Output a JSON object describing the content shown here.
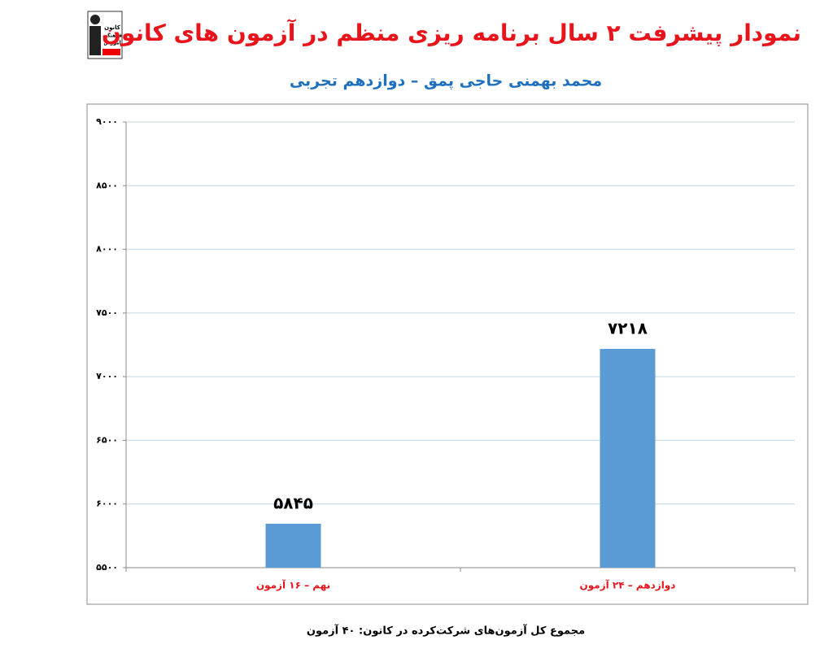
{
  "logo": {
    "lines": [
      "کانون",
      "فرهنگی",
      "آموزش"
    ]
  },
  "chart_data": {
    "type": "bar",
    "title": "نمودار پیشرفت ۲ سال برنامه ریزی منظم در آزمون های کانون",
    "subtitle": "محمد بهمنی حاجی پمق – دوازدهم تجربی",
    "categories": [
      "نهم – ۱۶ آزمون",
      "دوازدهم – ۲۴ آزمون"
    ],
    "values": [
      5845,
      7218
    ],
    "value_labels": [
      "۵۸۴۵",
      "۷۲۱۸"
    ],
    "color": "#5b9bd5",
    "ylim": [
      5500,
      9000
    ],
    "yticks": [
      {
        "value": 5500,
        "label": "۵۵۰۰"
      },
      {
        "value": 6000,
        "label": "۶۰۰۰"
      },
      {
        "value": 6500,
        "label": "۶۵۰۰"
      },
      {
        "value": 7000,
        "label": "۷۰۰۰"
      },
      {
        "value": 7500,
        "label": "۷۵۰۰"
      },
      {
        "value": 8000,
        "label": "۸۰۰۰"
      },
      {
        "value": 8500,
        "label": "۸۵۰۰"
      },
      {
        "value": 9000,
        "label": "۹۰۰۰"
      }
    ],
    "grid": true,
    "note": "مجموع کل آزمون‌های شرکت‌کرده در کانون: ۴۰ آزمون"
  }
}
